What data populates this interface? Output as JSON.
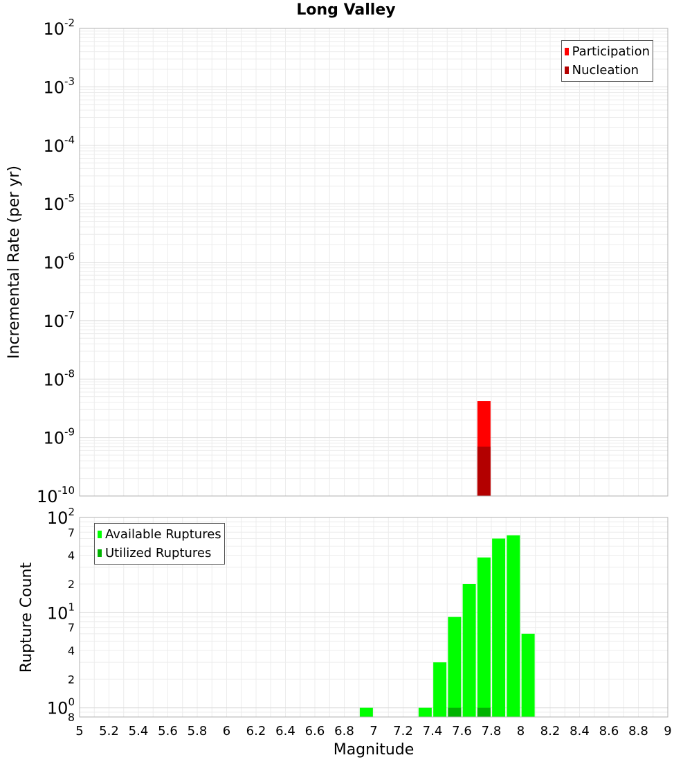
{
  "title": "Long Valley",
  "chart_data": [
    {
      "type": "bar",
      "yscale": "log",
      "ylabel": "Incremental Rate (per yr)",
      "ylim": [
        1e-10,
        0.01
      ],
      "xlim": [
        5,
        9
      ],
      "y_tick_exponents": [
        "-2",
        "-3",
        "-4",
        "-5",
        "-6",
        "-7",
        "-8",
        "-9",
        "-10"
      ],
      "grid": true,
      "legend_position": "top-right",
      "series": [
        {
          "name": "Participation",
          "color": "#ff0000",
          "x": [
            7.75
          ],
          "values": [
            4.2e-09
          ]
        },
        {
          "name": "Nucleation",
          "color": "#b30000",
          "x": [
            7.75
          ],
          "values": [
            7e-10
          ]
        }
      ]
    },
    {
      "type": "bar",
      "yscale": "log",
      "ylabel": "Rupture Count",
      "xlabel": "Magnitude",
      "ylim": [
        0.8,
        100
      ],
      "xlim": [
        5,
        9
      ],
      "y_tick_exponents": [
        "2",
        "1",
        "0"
      ],
      "y_minor_tick_labels": [
        "7",
        "4",
        "2",
        "7",
        "4",
        "2",
        "8"
      ],
      "x_tick_labels": [
        "5",
        "5.2",
        "5.4",
        "5.6",
        "5.8",
        "6",
        "6.2",
        "6.4",
        "6.6",
        "6.8",
        "7",
        "7.2",
        "7.4",
        "7.6",
        "7.8",
        "8",
        "8.2",
        "8.4",
        "8.6",
        "8.8",
        "9"
      ],
      "grid": true,
      "legend_position": "top-left",
      "series": [
        {
          "name": "Available Ruptures",
          "color": "#00ff00",
          "x": [
            6.95,
            7.35,
            7.45,
            7.55,
            7.65,
            7.75,
            7.85,
            7.95,
            8.05
          ],
          "values": [
            1,
            1,
            3,
            9,
            20,
            38,
            60,
            65,
            6
          ]
        },
        {
          "name": "Utilized Ruptures",
          "color": "#00b300",
          "x": [
            7.55,
            7.75
          ],
          "values": [
            1,
            1
          ]
        }
      ]
    }
  ]
}
